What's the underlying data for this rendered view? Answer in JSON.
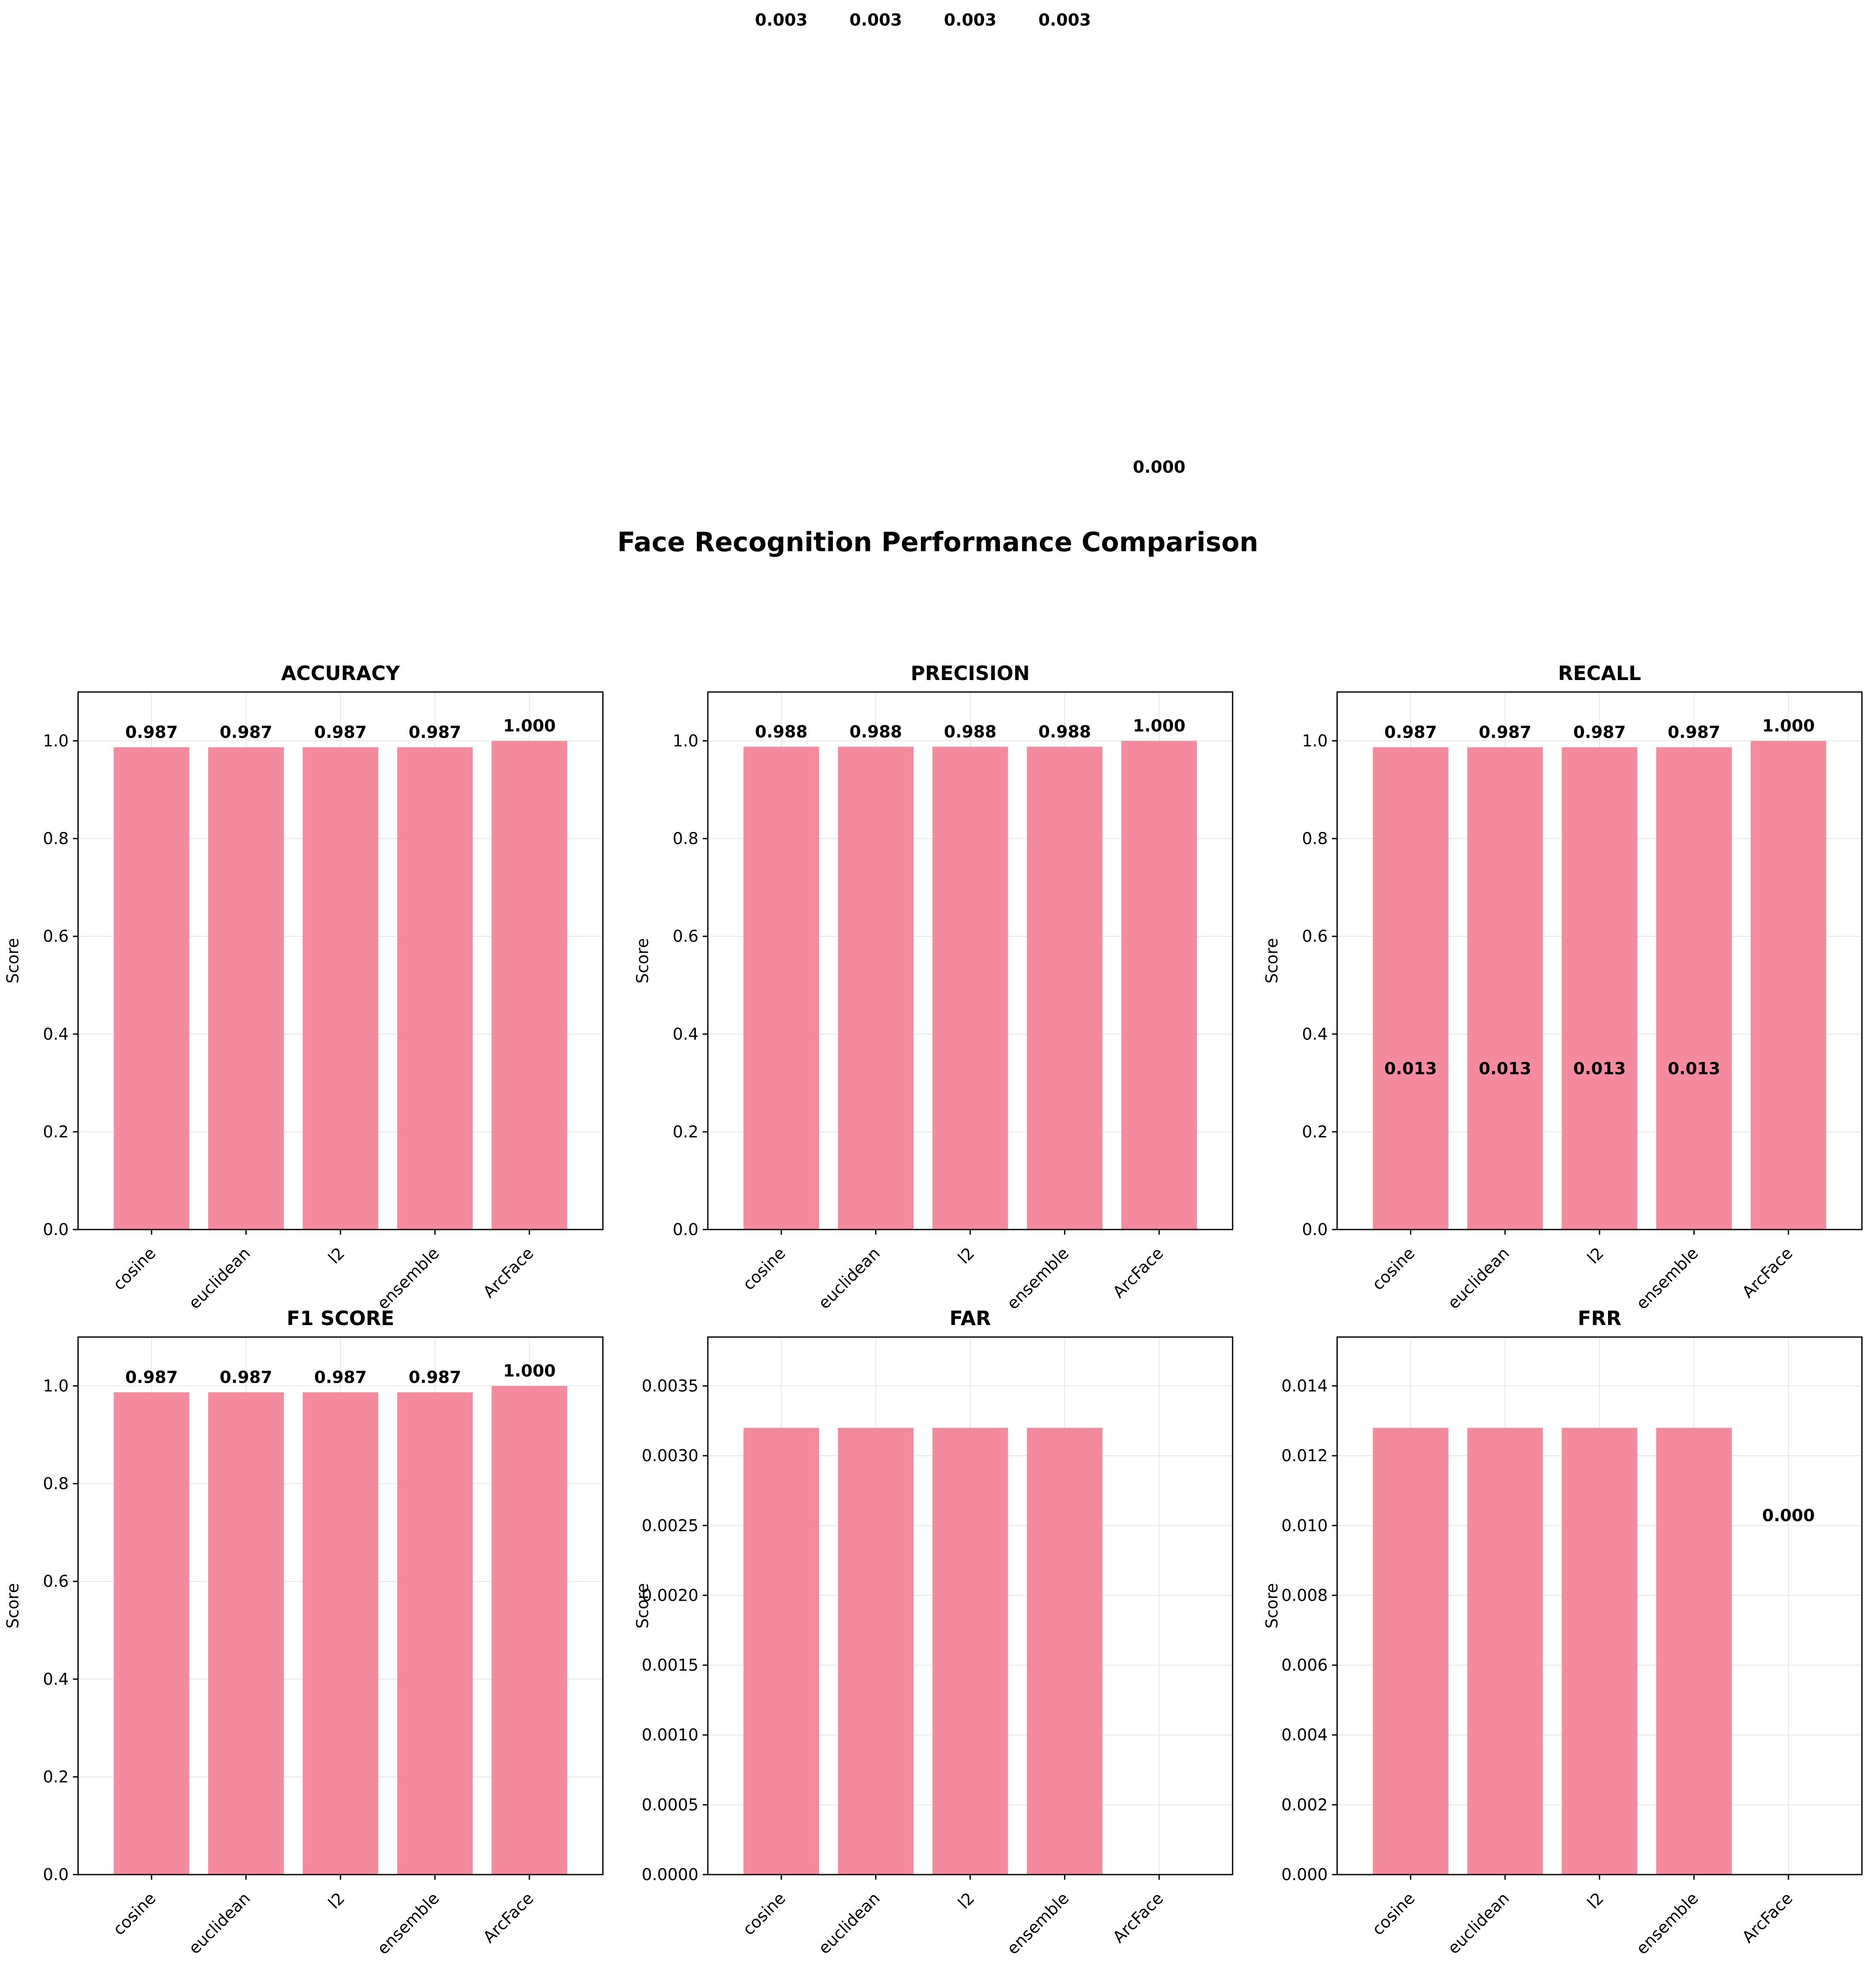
{
  "figure": {
    "title": "Face Recognition Performance Comparison"
  },
  "colors": {
    "bar": "#f48a9e",
    "grid": "#e6e6e6",
    "axis": "#000000",
    "text": "#000000"
  },
  "chart_data": [
    {
      "type": "bar",
      "title": "ACCURACY",
      "ylabel": "Score",
      "categories": [
        "cosine",
        "euclidean",
        "l2",
        "ensemble",
        "ArcFace"
      ],
      "values": [
        0.987,
        0.987,
        0.987,
        0.987,
        1.0
      ],
      "value_labels": [
        "0.987",
        "0.987",
        "0.987",
        "0.987",
        "1.000"
      ],
      "ylim": [
        0,
        1.1
      ],
      "yticks": [
        0.0,
        0.2,
        0.4,
        0.6,
        0.8,
        1.0
      ],
      "ytick_labels": [
        "0.0",
        "0.2",
        "0.4",
        "0.6",
        "0.8",
        "1.0"
      ],
      "grid": true
    },
    {
      "type": "bar",
      "title": "PRECISION",
      "ylabel": "Score",
      "categories": [
        "cosine",
        "euclidean",
        "l2",
        "ensemble",
        "ArcFace"
      ],
      "values": [
        0.988,
        0.988,
        0.988,
        0.988,
        1.0
      ],
      "value_labels": [
        "0.988",
        "0.988",
        "0.988",
        "0.988",
        "1.000"
      ],
      "ylim": [
        0,
        1.1
      ],
      "yticks": [
        0.0,
        0.2,
        0.4,
        0.6,
        0.8,
        1.0
      ],
      "ytick_labels": [
        "0.0",
        "0.2",
        "0.4",
        "0.6",
        "0.8",
        "1.0"
      ],
      "grid": true
    },
    {
      "type": "bar",
      "title": "RECALL",
      "ylabel": "Score",
      "categories": [
        "cosine",
        "euclidean",
        "l2",
        "ensemble",
        "ArcFace"
      ],
      "values": [
        0.987,
        0.987,
        0.987,
        0.987,
        1.0
      ],
      "value_labels": [
        "0.987",
        "0.987",
        "0.987",
        "0.987",
        "1.000"
      ],
      "ylim": [
        0,
        1.1
      ],
      "yticks": [
        0.0,
        0.2,
        0.4,
        0.6,
        0.8,
        1.0
      ],
      "ytick_labels": [
        "0.0",
        "0.2",
        "0.4",
        "0.6",
        "0.8",
        "1.0"
      ],
      "grid": true,
      "annotations": [
        {
          "text": "0.013",
          "category": "cosine",
          "y": 0.33
        },
        {
          "text": "0.013",
          "category": "euclidean",
          "y": 0.33
        },
        {
          "text": "0.013",
          "category": "l2",
          "y": 0.33
        },
        {
          "text": "0.013",
          "category": "ensemble",
          "y": 0.33
        }
      ]
    },
    {
      "type": "bar",
      "title": "F1 SCORE",
      "ylabel": "Score",
      "categories": [
        "cosine",
        "euclidean",
        "l2",
        "ensemble",
        "ArcFace"
      ],
      "values": [
        0.987,
        0.987,
        0.987,
        0.987,
        1.0
      ],
      "value_labels": [
        "0.987",
        "0.987",
        "0.987",
        "0.987",
        "1.000"
      ],
      "ylim": [
        0,
        1.1
      ],
      "yticks": [
        0.0,
        0.2,
        0.4,
        0.6,
        0.8,
        1.0
      ],
      "ytick_labels": [
        "0.0",
        "0.2",
        "0.4",
        "0.6",
        "0.8",
        "1.0"
      ],
      "grid": true
    },
    {
      "type": "bar",
      "title": "FAR",
      "ylabel": "Score",
      "categories": [
        "cosine",
        "euclidean",
        "l2",
        "ensemble",
        "ArcFace"
      ],
      "values": [
        0.0032,
        0.0032,
        0.0032,
        0.0032,
        0.0
      ],
      "value_labels": [
        "0.003",
        "0.003",
        "0.003",
        "0.003",
        "0.000"
      ],
      "ylim": [
        0,
        0.00385
      ],
      "yticks": [
        0.0,
        0.0005,
        0.001,
        0.0015,
        0.002,
        0.0025,
        0.003,
        0.0035
      ],
      "ytick_labels": [
        "0.0000",
        "0.0005",
        "0.0010",
        "0.0015",
        "0.0020",
        "0.0025",
        "0.0030",
        "0.0035"
      ],
      "grid": true,
      "labels_outside_top": true
    },
    {
      "type": "bar",
      "title": "FRR",
      "ylabel": "Score",
      "categories": [
        "cosine",
        "euclidean",
        "l2",
        "ensemble",
        "ArcFace"
      ],
      "values": [
        0.0128,
        0.0128,
        0.0128,
        0.0128,
        0.0
      ],
      "ylim": [
        0,
        0.0154
      ],
      "yticks": [
        0.0,
        0.002,
        0.004,
        0.006,
        0.008,
        0.01,
        0.012,
        0.014
      ],
      "ytick_labels": [
        "0.000",
        "0.002",
        "0.004",
        "0.006",
        "0.008",
        "0.010",
        "0.012",
        "0.014"
      ],
      "grid": true,
      "annotations": [
        {
          "text": "0.000",
          "category": "ArcFace",
          "y": 0.0103
        }
      ]
    }
  ]
}
